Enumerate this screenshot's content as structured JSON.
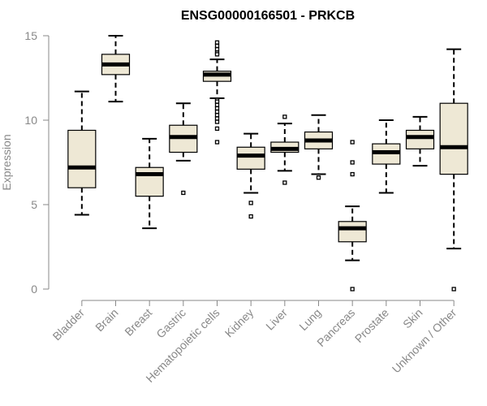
{
  "chart_data": {
    "type": "box",
    "title": "ENSG00000166501 - PRKCB",
    "ylabel": "Expression",
    "xlabel": "",
    "ylim": [
      0,
      15
    ],
    "yticks": [
      0,
      5,
      10,
      15
    ],
    "grid": false,
    "colors": {
      "box_fill": "#EEE8D5",
      "stroke": "#000000",
      "axis": "#888888"
    },
    "categories": [
      "Bladder",
      "Brain",
      "Breast",
      "Gastric",
      "Hematopoietic cells",
      "Kidney",
      "Liver",
      "Lung",
      "Pancreas",
      "Prostate",
      "Skin",
      "Unknown / Other"
    ],
    "boxes": [
      {
        "category": "Bladder",
        "whisker_low": 4.4,
        "q1": 6.0,
        "median": 7.2,
        "q3": 9.4,
        "whisker_high": 11.7,
        "outliers": []
      },
      {
        "category": "Brain",
        "whisker_low": 11.1,
        "q1": 12.7,
        "median": 13.3,
        "q3": 13.9,
        "whisker_high": 15.0,
        "outliers": []
      },
      {
        "category": "Breast",
        "whisker_low": 3.6,
        "q1": 5.5,
        "median": 6.8,
        "q3": 7.2,
        "whisker_high": 8.9,
        "outliers": []
      },
      {
        "category": "Gastric",
        "whisker_low": 7.6,
        "q1": 8.1,
        "median": 9.0,
        "q3": 9.7,
        "whisker_high": 11.0,
        "outliers": [
          5.7
        ]
      },
      {
        "category": "Hematopoietic cells",
        "whisker_low": 11.3,
        "q1": 12.3,
        "median": 12.7,
        "q3": 12.9,
        "whisker_high": 13.6,
        "outliers": [
          14.6,
          14.4,
          14.2,
          14.0,
          13.9,
          11.2,
          11.1,
          10.9,
          10.7,
          10.5,
          10.3,
          10.1,
          9.9,
          9.5,
          8.7
        ]
      },
      {
        "category": "Kidney",
        "whisker_low": 5.7,
        "q1": 7.1,
        "median": 7.9,
        "q3": 8.4,
        "whisker_high": 9.2,
        "outliers": [
          5.1,
          4.3
        ]
      },
      {
        "category": "Liver",
        "whisker_low": 7.0,
        "q1": 8.1,
        "median": 8.3,
        "q3": 8.7,
        "whisker_high": 9.8,
        "outliers": [
          10.2,
          6.3
        ]
      },
      {
        "category": "Lung",
        "whisker_low": 6.8,
        "q1": 8.3,
        "median": 8.8,
        "q3": 9.3,
        "whisker_high": 10.3,
        "outliers": [
          6.6
        ]
      },
      {
        "category": "Pancreas",
        "whisker_low": 1.7,
        "q1": 2.8,
        "median": 3.6,
        "q3": 4.0,
        "whisker_high": 4.9,
        "outliers": [
          8.7,
          7.5,
          6.8,
          0.0
        ]
      },
      {
        "category": "Prostate",
        "whisker_low": 5.7,
        "q1": 7.4,
        "median": 8.1,
        "q3": 8.6,
        "whisker_high": 10.0,
        "outliers": []
      },
      {
        "category": "Skin",
        "whisker_low": 7.3,
        "q1": 8.3,
        "median": 9.0,
        "q3": 9.4,
        "whisker_high": 10.2,
        "outliers": []
      },
      {
        "category": "Unknown / Other",
        "whisker_low": 2.4,
        "q1": 6.8,
        "median": 8.4,
        "q3": 11.0,
        "whisker_high": 14.2,
        "outliers": [
          0.0
        ]
      }
    ]
  }
}
